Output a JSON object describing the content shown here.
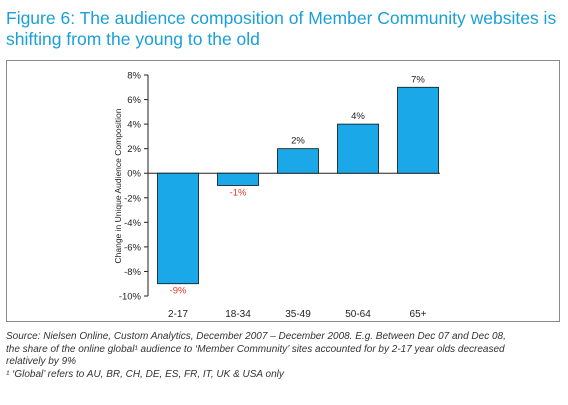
{
  "title": "Figure 6: The audience composition of Member Community websites is shifting from the young to the old",
  "colors": {
    "title": "#1aa0d8",
    "bar": "#1aa8e8",
    "bar_stroke": "#111111",
    "negative_label": "#e23a2a",
    "positive_label": "#222222"
  },
  "chart_data": {
    "type": "bar",
    "categories": [
      "2-17",
      "18-34",
      "35-49",
      "50-64",
      "65+"
    ],
    "values": [
      -9,
      -1,
      2,
      4,
      7
    ],
    "data_labels": [
      "-9%",
      "-1%",
      "2%",
      "4%",
      "7%"
    ],
    "title": "",
    "xlabel": "",
    "ylabel": "Change in Unique Audience Composition",
    "ylim": [
      -10,
      8
    ],
    "yticks": [
      8,
      6,
      4,
      2,
      0,
      -2,
      -4,
      -6,
      -8,
      -10
    ],
    "ytick_labels": [
      "8%",
      "6%",
      "4%",
      "2%",
      "0%",
      "-2%",
      "-4%",
      "-6%",
      "-8%",
      "-10%"
    ],
    "grid": false,
    "legend": "none"
  },
  "source": {
    "line1": "Source: Nielsen Online, Custom Analytics, December 2007 – December 2008. E.g. Between Dec 07 and Dec 08,",
    "line2": "the share of the online global¹ audience to ‘Member Community’ sites accounted for by 2-17 year olds decreased",
    "line3": "relatively by 9%",
    "footnote": "¹ ‘Global’ refers to AU, BR, CH, DE, ES, FR, IT, UK & USA only"
  }
}
